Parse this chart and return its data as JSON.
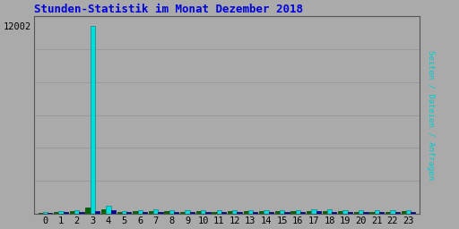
{
  "title": "Stunden-Statistik im Monat Dezember 2018",
  "title_color": "#0000dd",
  "ylabel_text": "Seiten / Dateien / Anfragen",
  "ylabel_color_seiten": "#008800",
  "ylabel_color_dateien": "#00cccc",
  "ylabel_color_anfragen": "#0000cc",
  "background_color": "#aaaaaa",
  "hours": [
    0,
    1,
    2,
    3,
    4,
    5,
    6,
    7,
    8,
    9,
    10,
    11,
    12,
    13,
    14,
    15,
    16,
    17,
    18,
    19,
    20,
    21,
    22,
    23
  ],
  "seiten": [
    80,
    130,
    175,
    420,
    310,
    120,
    150,
    175,
    165,
    145,
    150,
    145,
    155,
    155,
    160,
    165,
    165,
    200,
    175,
    160,
    145,
    145,
    145,
    155
  ],
  "dateien": [
    120,
    195,
    255,
    12002,
    490,
    175,
    225,
    265,
    245,
    215,
    225,
    215,
    235,
    235,
    245,
    245,
    245,
    295,
    265,
    240,
    215,
    215,
    218,
    228
  ],
  "anfragen": [
    60,
    100,
    130,
    200,
    215,
    90,
    112,
    133,
    122,
    107,
    112,
    107,
    117,
    117,
    122,
    122,
    122,
    147,
    133,
    120,
    107,
    107,
    110,
    115
  ],
  "color_seiten": "#006600",
  "color_dateien": "#00dddd",
  "color_anfragen": "#0000aa",
  "edge_seiten": "#004400",
  "edge_dateien": "#008888",
  "edge_anfragen": "#000066",
  "ylim_max": 12600,
  "ytick_value": 12002,
  "bar_width": 0.3,
  "grid_color": "#999999",
  "num_gridlines": 6,
  "border_color": "#555555"
}
